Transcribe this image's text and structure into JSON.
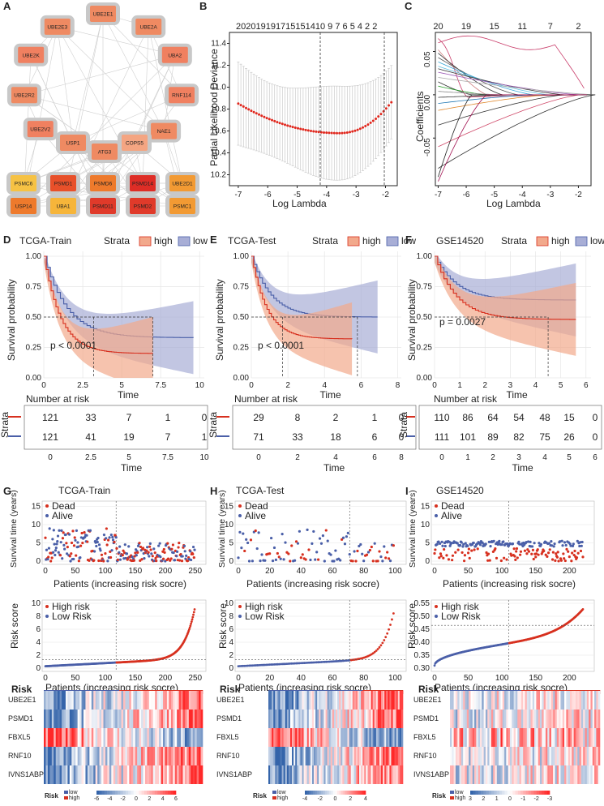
{
  "colors": {
    "high": "#d7301f",
    "low": "#4a5fa8",
    "high_fill": "#f2a98c",
    "low_fill": "#a8aed6",
    "cap": "#e0771f",
    "grid": "#e6e6e6",
    "node_bg": "#c8c8c8"
  },
  "panels": {
    "A": "A",
    "B": "B",
    "C": "C",
    "D": "D",
    "E": "E",
    "F": "F",
    "G": "G",
    "H": "H",
    "I": "I"
  },
  "network": {
    "ring": [
      {
        "name": "UBE2E1",
        "color": "#ef8a62"
      },
      {
        "name": "UBE2A",
        "color": "#ef8a62"
      },
      {
        "name": "UBA2",
        "color": "#f08060"
      },
      {
        "name": "RNF114",
        "color": "#f08060"
      },
      {
        "name": "NAE1",
        "color": "#ef8a62"
      },
      {
        "name": "COPS5",
        "color": "#f4a582"
      },
      {
        "name": "ATG3",
        "color": "#ef8a62"
      },
      {
        "name": "USP1",
        "color": "#ef8a62"
      },
      {
        "name": "UBE2V2",
        "color": "#f08060"
      },
      {
        "name": "UBE2R2",
        "color": "#ef8a62"
      },
      {
        "name": "UBE2K",
        "color": "#f08060"
      },
      {
        "name": "UBE2E3",
        "color": "#ef8a62"
      }
    ],
    "row1": [
      {
        "name": "PSMC6",
        "color": "#f6c244"
      },
      {
        "name": "PSMD1",
        "color": "#e8502a"
      },
      {
        "name": "PSMD6",
        "color": "#ee7a2c"
      },
      {
        "name": "PSMD14",
        "color": "#de2d26"
      },
      {
        "name": "UBE2D1",
        "color": "#f29a33"
      }
    ],
    "row2": [
      {
        "name": "USP14",
        "color": "#ee7a2c"
      },
      {
        "name": "UBA1",
        "color": "#f6b53a"
      },
      {
        "name": "PSMD11",
        "color": "#e03a2a"
      },
      {
        "name": "PSMD2",
        "color": "#e03a2a"
      },
      {
        "name": "PSMC1",
        "color": "#f29a33"
      }
    ]
  },
  "lasso_cv": {
    "top_ticks": "202019191715151410 9  7  6  5  4  2  2",
    "ylabel": "Partial Likelihood Deviance",
    "y_ticks": [
      "10.2",
      "10.4",
      "10.6",
      "10.8",
      "11.0",
      "11.2",
      "11.4"
    ],
    "xlabel": "Log Lambda",
    "x_ticks": [
      "-7",
      "-6",
      "-5",
      "-4",
      "-3",
      "-2"
    ]
  },
  "lasso_coef": {
    "top_ticks": [
      "20",
      "19",
      "15",
      "11",
      "7",
      "2"
    ],
    "ylabel": "Coefficients",
    "y_ticks": [
      "-0.05",
      "0.00",
      "0.05"
    ],
    "xlabel": "Log Lambda",
    "x_ticks": [
      "-7",
      "-6",
      "-5",
      "-4",
      "-3",
      "-2"
    ]
  },
  "km": [
    {
      "title": "TCGA-Train",
      "strata": "Strata",
      "high": "high",
      "low": "low",
      "pval": "p < 0.0001",
      "ylabel": "Survival probability",
      "y_ticks": [
        "1.00",
        "0.75",
        "0.50",
        "0.25",
        "0.00"
      ],
      "x_ticks": [
        "0",
        "2.5",
        "5",
        "7.5",
        "10"
      ],
      "xlabel": "Time",
      "risk_title": "Number at risk",
      "risk_ylabel": "Strata",
      "risk_high": [
        "121",
        "33",
        "7",
        "1",
        "0"
      ],
      "risk_low": [
        "121",
        "41",
        "19",
        "7",
        "1"
      ],
      "median_high": 3.2,
      "median_low": 7.0
    },
    {
      "title": "TCGA-Test",
      "strata": "Strata",
      "high": "high",
      "low": "low",
      "pval": "p < 0.0001",
      "ylabel": "Survival probability",
      "y_ticks": [
        "1.00",
        "0.75",
        "0.50",
        "0.25",
        "0.00"
      ],
      "x_ticks": [
        "0",
        "2",
        "4",
        "6",
        "8"
      ],
      "xlabel": "Time",
      "risk_title": "Number at risk",
      "risk_ylabel": "Strata",
      "risk_high": [
        "29",
        "8",
        "2",
        "1",
        "0"
      ],
      "risk_low": [
        "71",
        "33",
        "18",
        "6",
        "0"
      ],
      "median_high": 1.7,
      "median_low": 5.8
    },
    {
      "title": "GSE14520",
      "strata": "Strata",
      "high": "high",
      "low": "low",
      "pval": "p = 0.0027",
      "ylabel": "Survival probability",
      "y_ticks": [
        "1.00",
        "0.75",
        "0.50",
        "0.25",
        "0.00"
      ],
      "x_ticks": [
        "0",
        "1",
        "2",
        "3",
        "4",
        "5",
        "6"
      ],
      "xlabel": "Time",
      "risk_title": "Number at risk",
      "risk_ylabel": "Strata",
      "risk_high": [
        "110",
        "86",
        "64",
        "54",
        "48",
        "15",
        "0"
      ],
      "risk_low": [
        "111",
        "101",
        "89",
        "82",
        "75",
        "26",
        "0"
      ],
      "median_high": 4.5,
      "median_low": null
    }
  ],
  "risk_plots": [
    {
      "title": "TCGA-Train",
      "dead": "Dead",
      "alive": "Alive",
      "surv_ylabel": "Survival time (years)",
      "surv_y_ticks": [
        "15",
        "10",
        "5",
        "0"
      ],
      "x_ticks": [
        "0",
        "50",
        "100",
        "150",
        "200",
        "250"
      ],
      "xlabel": "Patients (increasing risk socre)",
      "high_risk": "High risk",
      "low_risk": "Low Risk",
      "score_ylabel": "Risk score",
      "score_y_ticks": [
        "10",
        "8",
        "6",
        "4",
        "2",
        "0"
      ]
    },
    {
      "title": "TCGA-Test",
      "dead": "Dead",
      "alive": "Alive",
      "surv_ylabel": "Survival time (years)",
      "surv_y_ticks": [
        "15",
        "10",
        "5",
        "0"
      ],
      "x_ticks": [
        "0",
        "20",
        "40",
        "60",
        "80",
        "100"
      ],
      "xlabel": "Patients (increasing risk socre)",
      "high_risk": "High risk",
      "low_risk": "Low Risk",
      "score_ylabel": "Risk score",
      "score_y_ticks": [
        "10",
        "8",
        "6",
        "4",
        "2",
        "0"
      ]
    },
    {
      "title": "GSE14520",
      "dead": "Dead",
      "alive": "Alive",
      "surv_ylabel": "Survival time (years)",
      "surv_y_ticks": [
        "15",
        "10",
        "5",
        "0"
      ],
      "x_ticks": [
        "0",
        "50",
        "100",
        "150",
        "200"
      ],
      "xlabel": "Patients (increasing risk socre)",
      "high_risk": "High risk",
      "low_risk": "Low Risk",
      "score_ylabel": "Risk score",
      "score_y_ticks": [
        "0.55",
        "0.50",
        "0.45",
        "0.40",
        "0.35",
        "0.30"
      ]
    }
  ],
  "heatmaps": [
    {
      "risk_label": "Risk",
      "genes": [
        "UBE2E1",
        "PSMD1",
        "FBXL5",
        "RNF10",
        "IVNS1ABP"
      ],
      "legend_risk": "Risk",
      "low": "low",
      "high": "high",
      "scale": [
        "-6",
        "-4",
        "-2",
        "0",
        "2",
        "4",
        "6"
      ]
    },
    {
      "risk_label": "Risk",
      "genes": [
        "UBE2E1",
        "PSMD1",
        "FBXL5",
        "RNF10",
        "IVNS1ABP"
      ],
      "legend_risk": "Risk",
      "low": "low",
      "high": "high",
      "scale": [
        "-4",
        "-2",
        "0",
        "2",
        "4"
      ]
    },
    {
      "risk_label": "Risk",
      "genes": [
        "UBE2E1",
        "PSMD1",
        "FBXL5",
        "RNF10",
        "IVNS1ABP"
      ],
      "legend_risk": "Risk",
      "low": "low",
      "high": "high",
      "scale": [
        "3",
        "2",
        "1",
        "0",
        "-1",
        "-2",
        "-3"
      ]
    }
  ]
}
